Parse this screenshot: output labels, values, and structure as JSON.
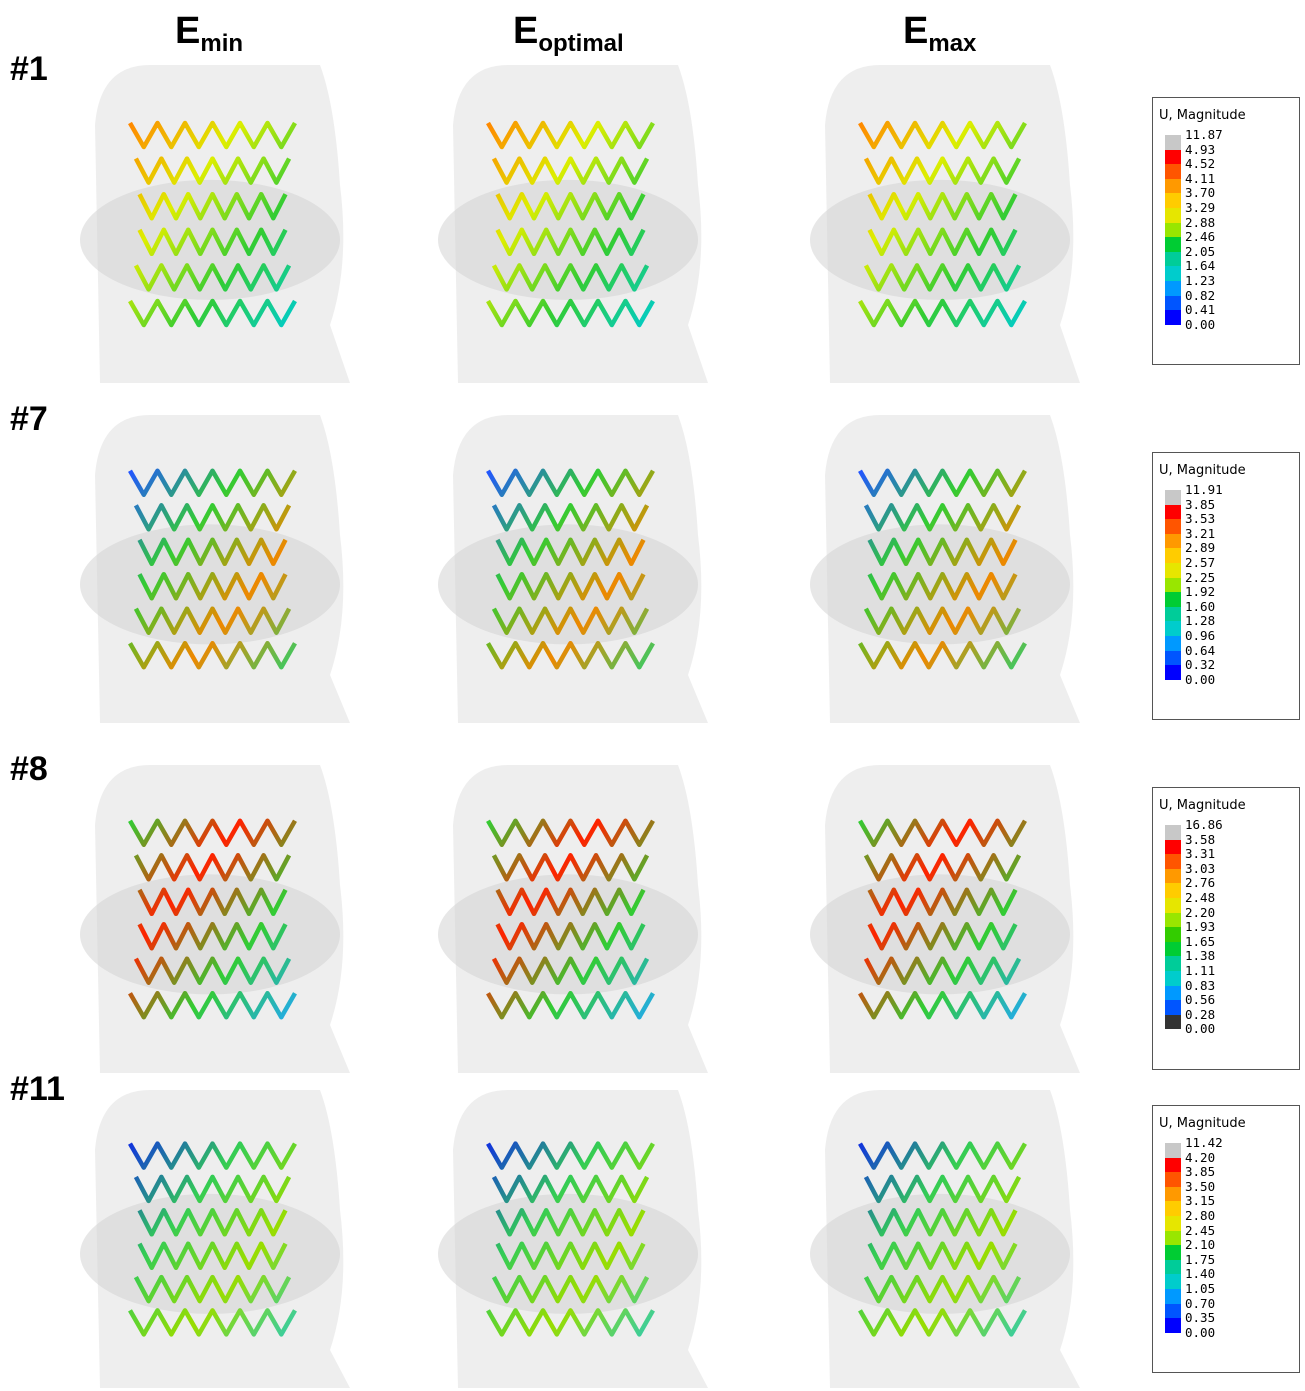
{
  "columns": [
    {
      "main": "E",
      "sub": "min"
    },
    {
      "main": "E",
      "sub": "optimal"
    },
    {
      "main": "E",
      "sub": "max"
    }
  ],
  "rows": [
    {
      "label": "#1",
      "legend": {
        "title": "U, Magnitude",
        "labels": [
          "11.87",
          "4.93",
          "4.52",
          "4.11",
          "3.70",
          "3.29",
          "2.88",
          "2.46",
          "2.05",
          "1.64",
          "1.23",
          "0.82",
          "0.41",
          "0.00"
        ]
      }
    },
    {
      "label": "#7",
      "legend": {
        "title": "U, Magnitude",
        "labels": [
          "11.91",
          "3.85",
          "3.53",
          "3.21",
          "2.89",
          "2.57",
          "2.25",
          "1.92",
          "1.60",
          "1.28",
          "0.96",
          "0.64",
          "0.32",
          "0.00"
        ]
      }
    },
    {
      "label": "#8",
      "legend": {
        "title": "U, Magnitude",
        "labels": [
          "16.86",
          "3.58",
          "3.31",
          "3.03",
          "2.76",
          "2.48",
          "2.20",
          "1.93",
          "1.65",
          "1.38",
          "1.11",
          "0.83",
          "0.56",
          "0.28",
          "0.00"
        ]
      }
    },
    {
      "label": "#11",
      "legend": {
        "title": "U, Magnitude",
        "labels": [
          "11.42",
          "4.20",
          "3.85",
          "3.50",
          "3.15",
          "2.80",
          "2.45",
          "2.10",
          "1.75",
          "1.40",
          "1.05",
          "0.70",
          "0.35",
          "0.00"
        ]
      }
    }
  ]
}
